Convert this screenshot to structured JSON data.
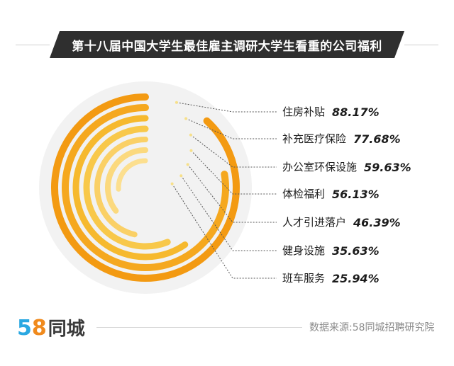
{
  "title": "第十八届中国大学生最佳雇主调研大学生看重的公司福利",
  "logo": {
    "digit1": "5",
    "digit2": "8",
    "name": "同城"
  },
  "source": "数据来源:58同城招聘研究院",
  "colors": {
    "title_bg": "#2f2f2f",
    "background_disc": "#f2f2f2",
    "ring_colors": [
      "#f39a12",
      "#f5a81f",
      "#f6b92e",
      "#f8c84a",
      "#fad066",
      "#fbd97e",
      "#fcdf8f"
    ],
    "leader_line": "#555555"
  },
  "chart_data": {
    "type": "radial-bar",
    "title": "第十八届中国大学生最佳雇主调研大学生看重的公司福利",
    "unit": "%",
    "max": 100,
    "items": [
      {
        "label": "住房补贴",
        "value": 88.17,
        "value_text": "88.17%"
      },
      {
        "label": "补充医疗保险",
        "value": 77.68,
        "value_text": "77.68%"
      },
      {
        "label": "办公室环保设施",
        "value": 59.63,
        "value_text": "59.63%"
      },
      {
        "label": "体检福利",
        "value": 56.13,
        "value_text": "56.13%"
      },
      {
        "label": "人才引进落户",
        "value": 46.39,
        "value_text": "46.39%"
      },
      {
        "label": "健身设施",
        "value": 35.63,
        "value_text": "35.63%"
      },
      {
        "label": "班车服务",
        "value": 25.94,
        "value_text": "25.94%"
      }
    ]
  }
}
